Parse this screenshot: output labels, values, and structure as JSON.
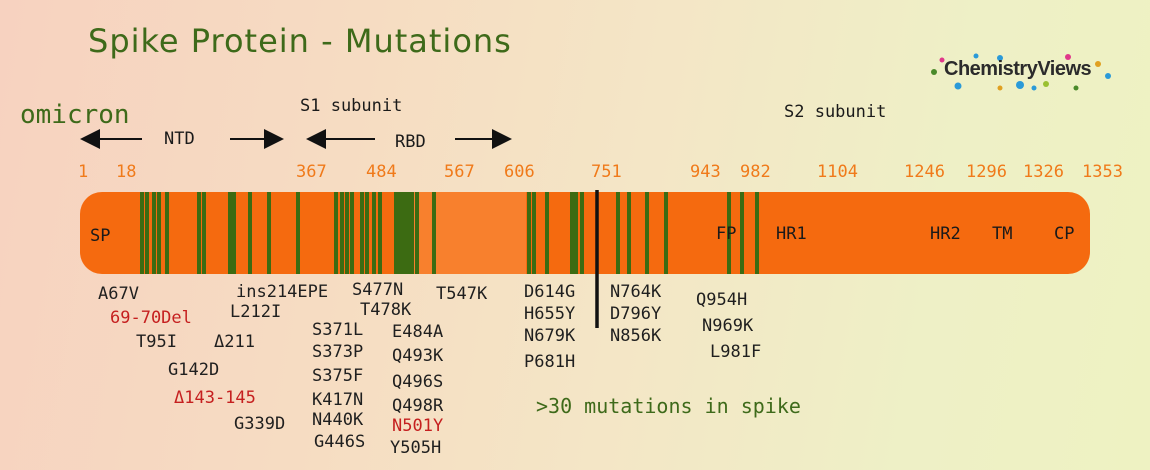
{
  "title": "Spike Protein - Mutations",
  "variant": "omicron",
  "logo": "ChemistryViews",
  "subunits": {
    "s1": "S1 subunit",
    "s2": "S2 subunit"
  },
  "regions": {
    "ntd": "NTD",
    "rbd": "RBD"
  },
  "positions": [
    "1",
    "18",
    "367",
    "484",
    "567",
    "606",
    "751",
    "943",
    "982",
    "1104",
    "1246",
    "1296",
    "1326",
    "1353"
  ],
  "domains": {
    "sp": "SP",
    "fp": "FP",
    "hr1": "HR1",
    "hr2": "HR2",
    "tm": "TM",
    "cp": "CP"
  },
  "mutations": {
    "ntd_col1": [
      "A67V",
      "69-70Del",
      "T95I",
      "Δ211",
      "G142D",
      "Δ143-145",
      "L212I",
      "ins214EPE",
      "G339D"
    ],
    "rbd_col1": [
      "S371L",
      "S373P",
      "S375F",
      "K417N",
      "N440K",
      "G446S"
    ],
    "rbd_col2": [
      "S477N",
      "T478K",
      "E484A",
      "Q493K",
      "Q496S",
      "Q498R",
      "N501Y",
      "Y505H"
    ],
    "other": [
      "T547K"
    ],
    "s1_end": [
      "D614G",
      "H655Y",
      "N679K",
      "P681H"
    ],
    "s2_a": [
      "N764K",
      "D796Y",
      "N856K"
    ],
    "s2_b": [
      "Q954H",
      "N969K",
      "L981F"
    ]
  },
  "note": ">30 mutations in spike",
  "colors": {
    "bar": "#f56a0f",
    "mutation_line": "#3c6b12",
    "title": "#3e6a1a",
    "highlight": "#c51f1f",
    "position": "#f07a1a"
  }
}
